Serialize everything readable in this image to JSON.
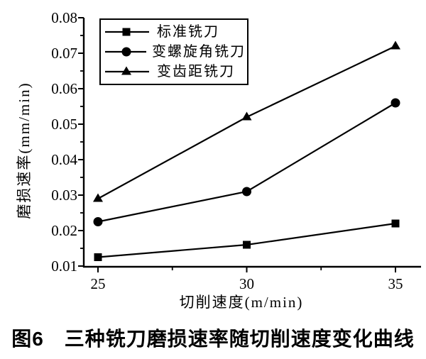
{
  "figure": {
    "caption": "图6　三种铣刀磨损速率随切削速度变化曲线"
  },
  "chart_data": {
    "type": "line",
    "title": "",
    "xlabel": "切削速度(m/min)",
    "ylabel": "磨损速率(mm/min)",
    "x": [
      25,
      30,
      35
    ],
    "x_tick_labels": [
      "25",
      "30",
      "35"
    ],
    "y_tick_labels": [
      "0.01",
      "0.02",
      "0.03",
      "0.04",
      "0.05",
      "0.06",
      "0.07",
      "0.08"
    ],
    "xlim": [
      24.5,
      35.9
    ],
    "ylim": [
      0.01,
      0.08
    ],
    "grid": false,
    "legend_position": "inside-top-left",
    "ink_color": "#000000",
    "background_color": "#ffffff",
    "series": [
      {
        "name": "标准铣刀",
        "marker": "square",
        "values": [
          0.0125,
          0.016,
          0.022
        ]
      },
      {
        "name": "变螺旋角铣刀",
        "marker": "circle",
        "values": [
          0.0225,
          0.031,
          0.056
        ]
      },
      {
        "name": "变齿距铣刀",
        "marker": "triangle",
        "values": [
          0.029,
          0.052,
          0.072
        ]
      }
    ]
  }
}
